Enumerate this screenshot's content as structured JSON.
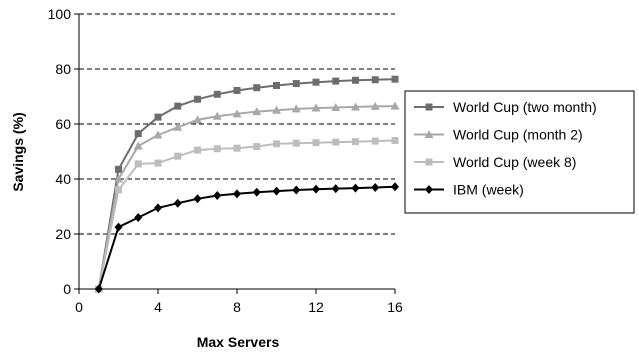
{
  "chart_data": {
    "type": "line",
    "title": "",
    "xlabel": "Max Servers",
    "ylabel": "Savings (%)",
    "xlim": [
      0,
      16
    ],
    "ylim": [
      0,
      100
    ],
    "xticks": [
      0,
      4,
      8,
      12,
      16
    ],
    "yticks": [
      0,
      20,
      40,
      60,
      80,
      100
    ],
    "grid": "horizontal-dashed",
    "legend_position": "right",
    "series": [
      {
        "name": "World Cup (two month)",
        "color": "#6d6d6d",
        "marker": "square",
        "x": [
          1,
          2,
          3,
          4,
          5,
          6,
          7,
          8,
          9,
          10,
          11,
          12,
          13,
          14,
          15,
          16
        ],
        "y": [
          0,
          43.5,
          56.5,
          62.5,
          66.5,
          69,
          70.8,
          72.2,
          73.2,
          74,
          74.7,
          75.2,
          75.6,
          75.9,
          76.1,
          76.3
        ]
      },
      {
        "name": "World Cup (month 2)",
        "color": "#a8a8a8",
        "marker": "triangle",
        "x": [
          1,
          2,
          3,
          4,
          5,
          6,
          7,
          8,
          9,
          10,
          11,
          12,
          13,
          14,
          15,
          16
        ],
        "y": [
          0,
          40,
          52,
          56,
          58.8,
          61.5,
          62.8,
          63.7,
          64.5,
          65,
          65.5,
          65.8,
          66,
          66.2,
          66.4,
          66.5
        ]
      },
      {
        "name": "World Cup (week 8)",
        "color": "#bdbdbd",
        "marker": "square",
        "x": [
          1,
          2,
          3,
          4,
          5,
          6,
          7,
          8,
          9,
          10,
          11,
          12,
          13,
          14,
          15,
          16
        ],
        "y": [
          0,
          36,
          45.5,
          45.8,
          48.3,
          50.5,
          51,
          51.2,
          51.8,
          52.8,
          53,
          53.2,
          53.4,
          53.6,
          53.8,
          54
        ]
      },
      {
        "name": "IBM (week)",
        "color": "#000000",
        "marker": "diamond",
        "x": [
          1,
          2,
          3,
          4,
          5,
          6,
          7,
          8,
          9,
          10,
          11,
          12,
          13,
          14,
          15,
          16
        ],
        "y": [
          0,
          22.5,
          26,
          29.5,
          31.2,
          32.8,
          34,
          34.6,
          35.2,
          35.6,
          36,
          36.3,
          36.5,
          36.7,
          36.9,
          37.2
        ]
      }
    ]
  }
}
